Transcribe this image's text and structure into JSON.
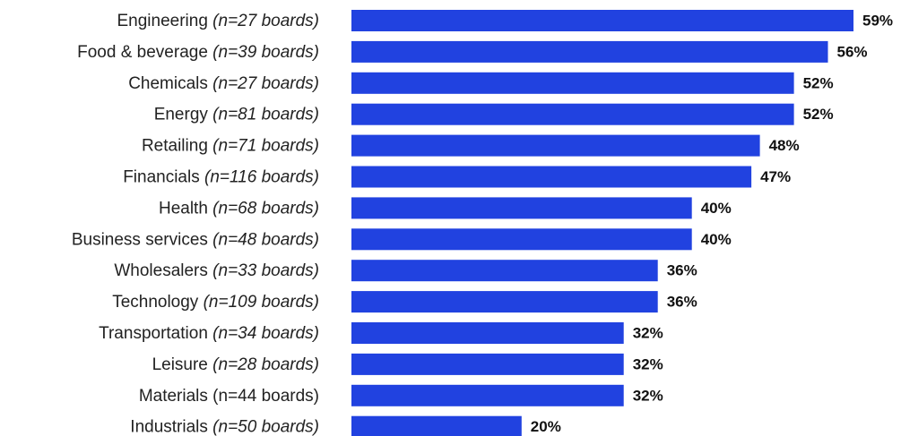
{
  "chart_data": {
    "type": "bar",
    "orientation": "horizontal",
    "categories": [
      {
        "name": "Engineering",
        "n": "(n=27 boards)",
        "n_italic": true
      },
      {
        "name": "Food & beverage",
        "n": "(n=39 boards)",
        "n_italic": true
      },
      {
        "name": "Chemicals",
        "n": "(n=27 boards)",
        "n_italic": true
      },
      {
        "name": "Energy",
        "n": "(n=81 boards)",
        "n_italic": true
      },
      {
        "name": "Retailing",
        "n": "(n=71 boards)",
        "n_italic": true
      },
      {
        "name": "Financials",
        "n": "(n=116 boards)",
        "n_italic": true
      },
      {
        "name": "Health",
        "n": "(n=68 boards)",
        "n_italic": true
      },
      {
        "name": "Business services",
        "n": "(n=48 boards)",
        "n_italic": true
      },
      {
        "name": "Wholesalers",
        "n": "(n=33 boards)",
        "n_italic": true
      },
      {
        "name": "Technology",
        "n": "(n=109 boards)",
        "n_italic": true
      },
      {
        "name": "Transportation",
        "n": "(n=34 boards)",
        "n_italic": true
      },
      {
        "name": "Leisure",
        "n": "(n=28 boards)",
        "n_italic": true
      },
      {
        "name": "Materials",
        "n": "(n=44 boards)",
        "n_italic": false
      },
      {
        "name": "Industrials",
        "n": "(n=50 boards)",
        "n_italic": true
      }
    ],
    "values": [
      59,
      56,
      52,
      52,
      48,
      47,
      40,
      40,
      36,
      36,
      32,
      32,
      32,
      20
    ],
    "value_labels": [
      "59%",
      "56%",
      "52%",
      "52%",
      "48%",
      "47%",
      "40%",
      "40%",
      "36%",
      "36%",
      "32%",
      "32%",
      "32%",
      "20%"
    ],
    "unit": "%",
    "xlim": [
      0,
      59
    ],
    "bar_color": "#2142e0",
    "grid": false,
    "legend": "none"
  }
}
